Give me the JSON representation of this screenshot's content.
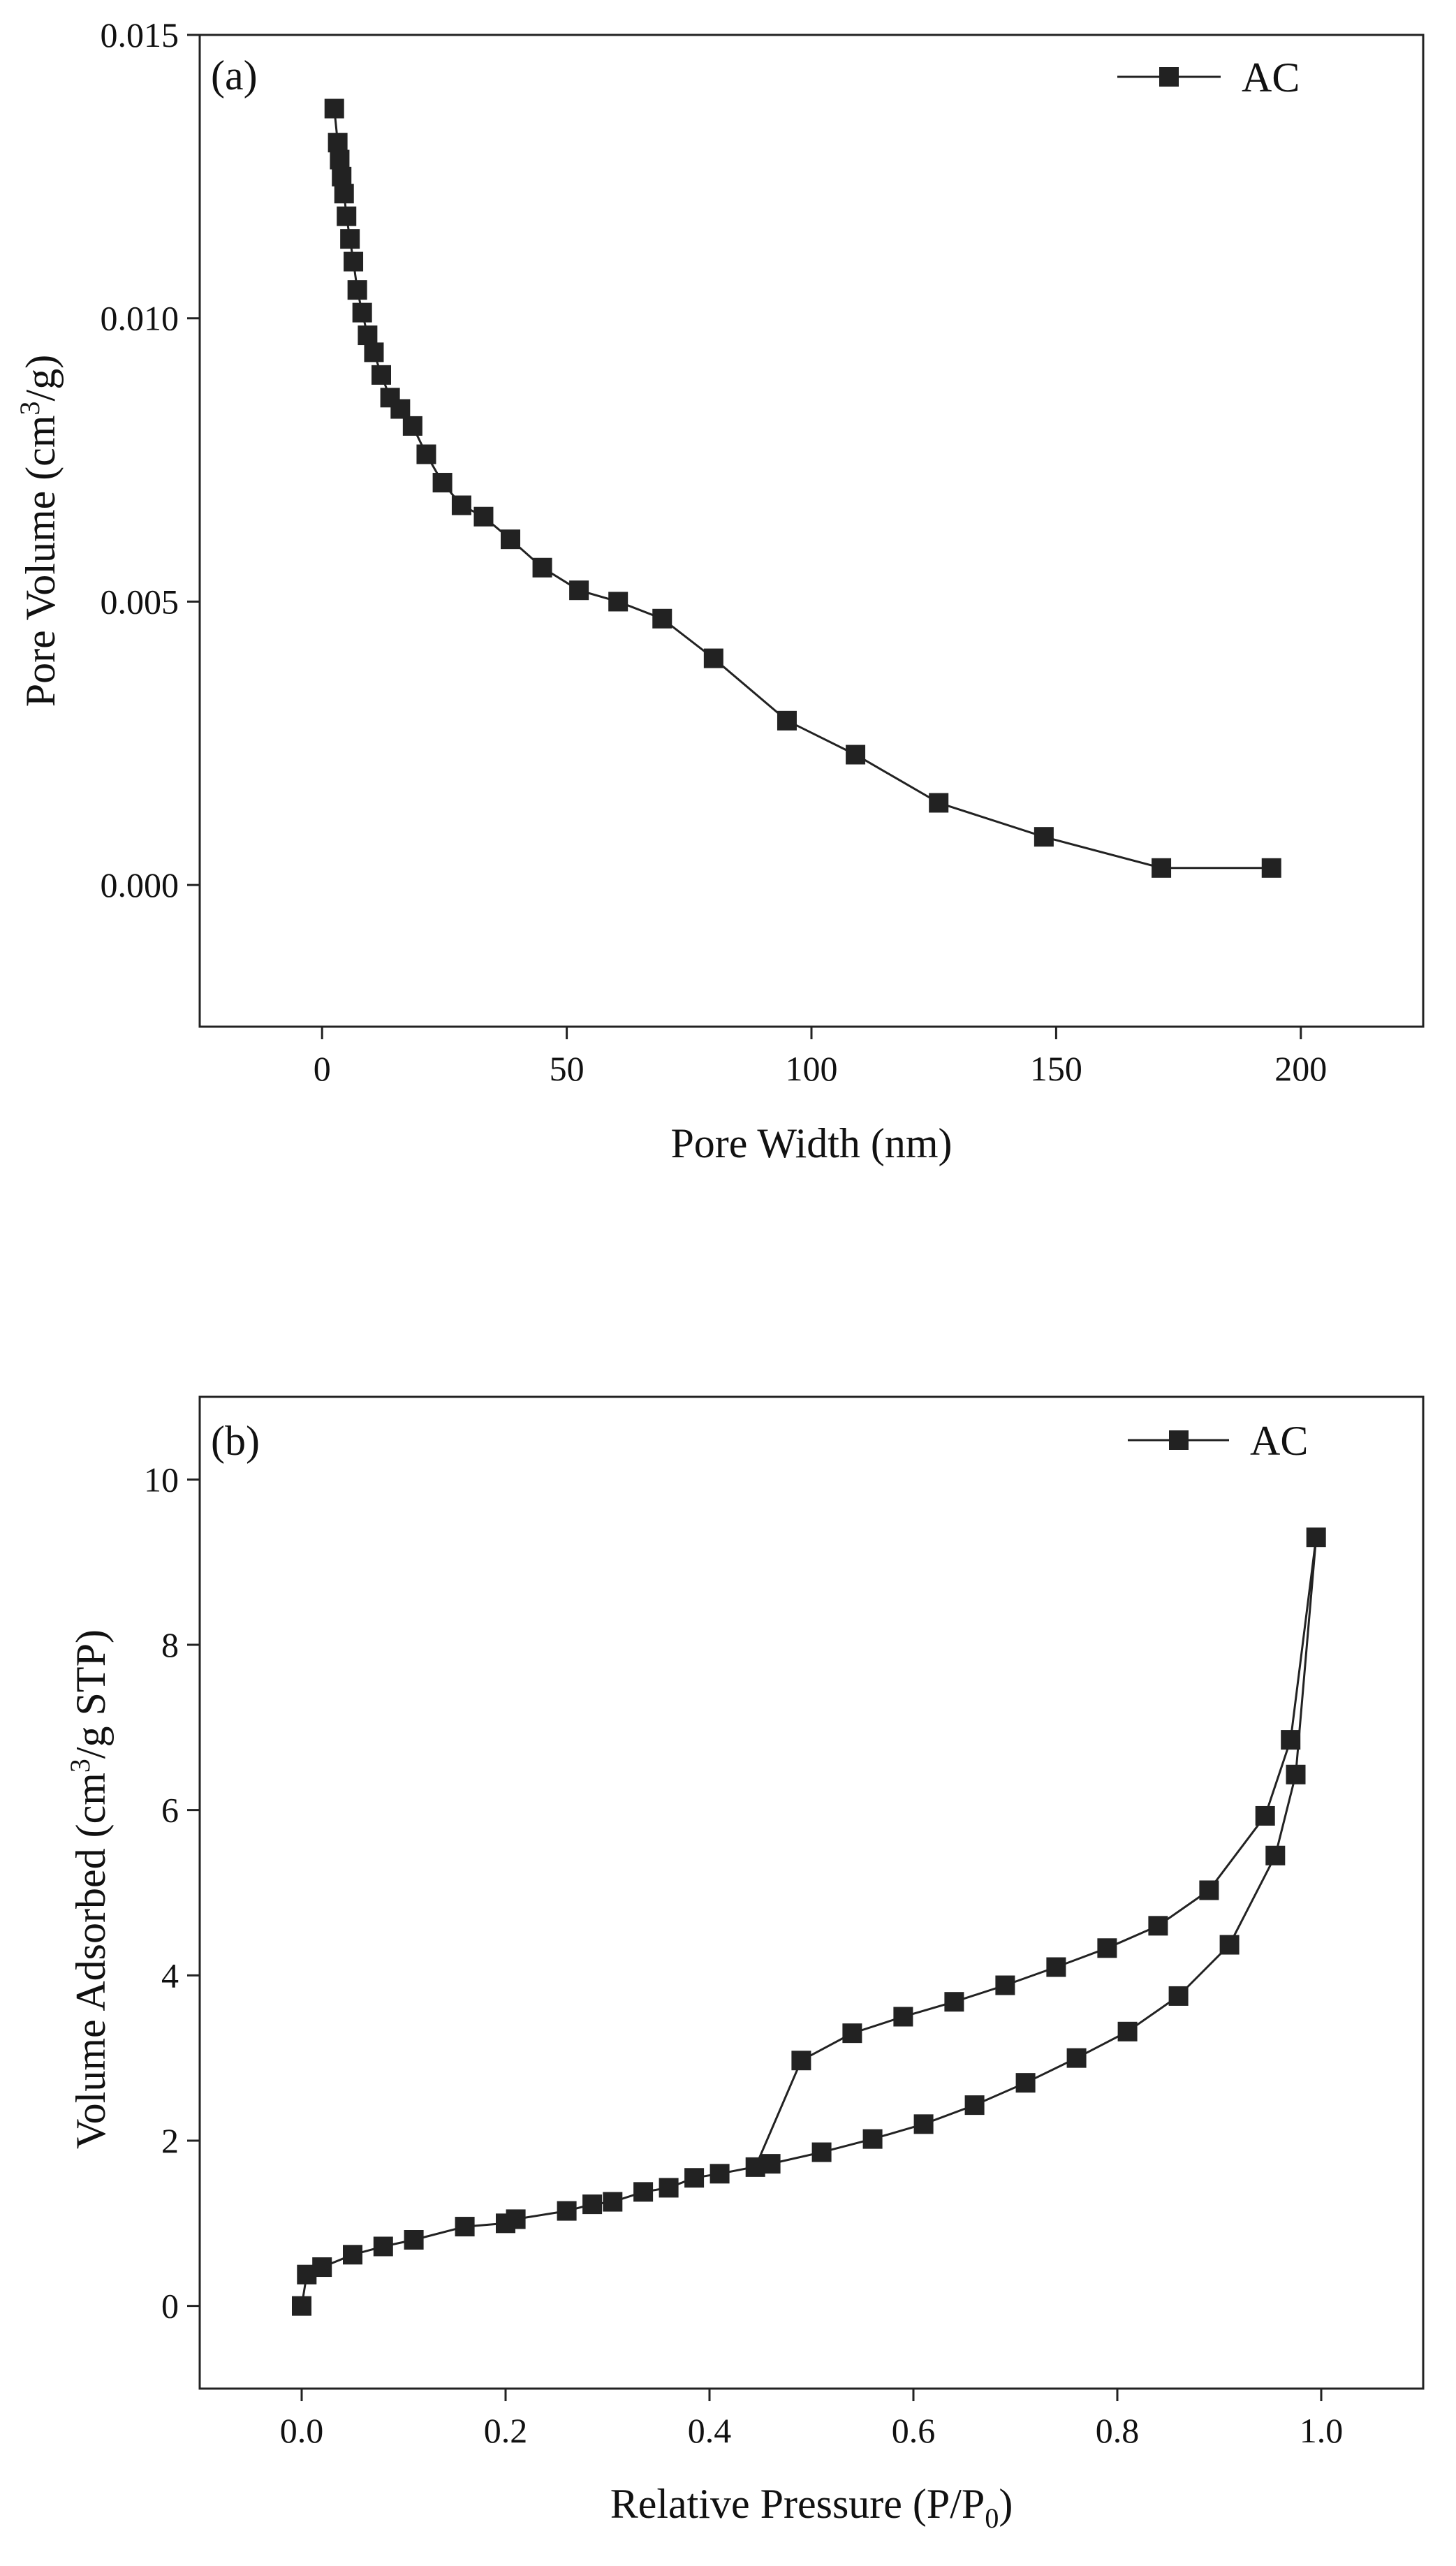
{
  "chart_data": [
    {
      "type": "line",
      "panel_label": "(a)",
      "xlabel": "Pore Width (nm)",
      "ylabel_parts": [
        "Pore Volume (cm",
        "3",
        "/g)"
      ],
      "xlim": [
        -25,
        225
      ],
      "ylim": [
        -0.0025,
        0.015
      ],
      "xticks": [
        0,
        50,
        100,
        150,
        200
      ],
      "xtick_labels": [
        "0",
        "50",
        "100",
        "150",
        "200"
      ],
      "yticks": [
        0.0,
        0.005,
        0.01,
        0.015
      ],
      "ytick_labels": [
        "0.000",
        "0.005",
        "0.010",
        "0.015"
      ],
      "legend": {
        "position": "top-right",
        "entries": [
          "AC"
        ]
      },
      "series": [
        {
          "name": "AC",
          "x": [
            2.5,
            3.2,
            3.6,
            4.0,
            4.5,
            5.0,
            5.7,
            6.4,
            7.2,
            8.2,
            9.3,
            10.6,
            12.1,
            13.9,
            16.0,
            18.5,
            21.3,
            24.6,
            28.5,
            33.0,
            38.5,
            45.0,
            52.5,
            60.5,
            69.5,
            80.0,
            95.0,
            109.0,
            126.0,
            147.5,
            171.5,
            194.0
          ],
          "y": [
            0.0137,
            0.0131,
            0.0128,
            0.0125,
            0.0122,
            0.0118,
            0.0114,
            0.011,
            0.0105,
            0.0101,
            0.0097,
            0.0094,
            0.009,
            0.0086,
            0.0084,
            0.0081,
            0.0076,
            0.0071,
            0.0067,
            0.0065,
            0.0061,
            0.0056,
            0.0052,
            0.005,
            0.0047,
            0.004,
            0.0029,
            0.0023,
            0.00145,
            0.00085,
            0.0003,
            0.0003
          ]
        }
      ]
    },
    {
      "type": "line",
      "panel_label": "(b)",
      "xlabel_parts": [
        "Relative Pressure (P/P",
        "0",
        ")"
      ],
      "ylabel_parts": [
        "Volume Adsorbed (cm",
        "3",
        "/g STP)"
      ],
      "xlim": [
        -0.1,
        1.1
      ],
      "ylim": [
        -1,
        11
      ],
      "xticks": [
        0.0,
        0.2,
        0.4,
        0.6,
        0.8,
        1.0
      ],
      "xtick_labels": [
        "0.0",
        "0.2",
        "0.4",
        "0.6",
        "0.8",
        "1.0"
      ],
      "yticks": [
        0,
        2,
        4,
        6,
        8,
        10
      ],
      "ytick_labels": [
        "0",
        "2",
        "4",
        "6",
        "8",
        "10"
      ],
      "legend": {
        "position": "top-right",
        "entries": [
          "AC"
        ]
      },
      "series": [
        {
          "name": "AC",
          "x": [
            0.0,
            0.005,
            0.02,
            0.05,
            0.08,
            0.11,
            0.16,
            0.2,
            0.21,
            0.26,
            0.285,
            0.305,
            0.335,
            0.36,
            0.385,
            0.41,
            0.46,
            0.51,
            0.56,
            0.61,
            0.66,
            0.71,
            0.76,
            0.81,
            0.86,
            0.91,
            0.955,
            0.975,
            0.995,
            0.97,
            0.945,
            0.89,
            0.84,
            0.79,
            0.74,
            0.69,
            0.64,
            0.59,
            0.54,
            0.49,
            0.445
          ],
          "y": [
            0.0,
            0.38,
            0.47,
            0.62,
            0.72,
            0.8,
            0.96,
            1.0,
            1.05,
            1.15,
            1.23,
            1.26,
            1.38,
            1.43,
            1.55,
            1.6,
            1.72,
            1.86,
            2.02,
            2.2,
            2.43,
            2.7,
            3.0,
            3.32,
            3.75,
            4.37,
            5.45,
            6.43,
            9.3,
            6.85,
            5.93,
            5.03,
            4.6,
            4.33,
            4.1,
            3.88,
            3.68,
            3.5,
            3.3,
            2.97,
            1.68
          ]
        }
      ]
    }
  ]
}
